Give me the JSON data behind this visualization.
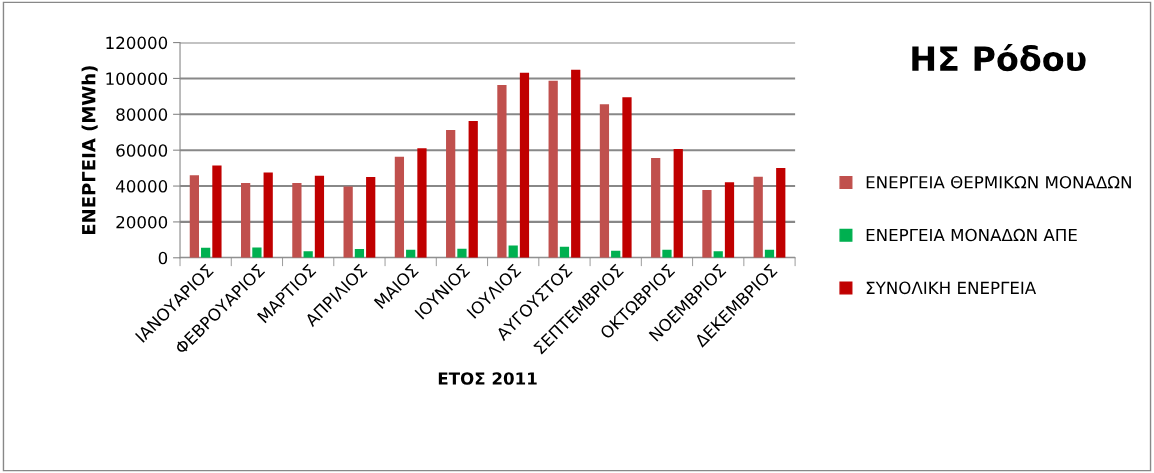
{
  "chart_data": {
    "type": "bar",
    "title": "ΗΣ Ρόδου",
    "xlabel": "ΕΤΟΣ 2011",
    "ylabel": "ΕΝΕΡΓΕΙΑ (MWh)",
    "categories": [
      "ΙΑΝΟΥΑΡΙΟΣ",
      "ΦΕΒΡΟΥΑΡΙΟΣ",
      "ΜΑΡΤΙΟΣ",
      "ΑΠΡΙΛΙΟΣ",
      "ΜΑΙΟΣ",
      "ΙΟΥΝΙΟΣ",
      "ΙΟΥΛΙΟΣ",
      "ΑΥΓΟΥΣΤΟΣ",
      "ΣΕΠΤΕΜΒΡΙΟΣ",
      "ΟΚΤΩΒΡΙΟΣ",
      "ΝΟΕΜΒΡΙΟΣ",
      "ΔΕΚΕΜΒΡΙΟΣ"
    ],
    "series": [
      {
        "name": "ΕΝΕΡΓΕΙΑ ΘΕΡΜΙΚΩΝ ΜΟΝΑΔΩΝ",
        "color": "#c0504d",
        "values": [
          46000,
          41700,
          41700,
          39800,
          56400,
          71200,
          96300,
          98700,
          85600,
          55700,
          37800,
          45200
        ]
      },
      {
        "name": "ΕΝΕΡΓΕΙΑ ΜΟΝΑΔΩΝ ΑΠΕ",
        "color": "#00b050",
        "values": [
          5600,
          5800,
          3700,
          4900,
          4500,
          5000,
          6900,
          6200,
          3900,
          4500,
          3700,
          4500
        ]
      },
      {
        "name": "ΣΥΝΟΛΙΚΗ ΕΝΕΡΓΕΙΑ",
        "color": "#c00000",
        "values": [
          51400,
          47500,
          45800,
          45000,
          61100,
          76300,
          103200,
          104900,
          89500,
          60600,
          42100,
          50100
        ]
      }
    ],
    "ylim": [
      0,
      120000
    ],
    "yticks": [
      0,
      20000,
      40000,
      60000,
      80000,
      100000,
      120000
    ],
    "grid": "y",
    "legend": "right"
  }
}
